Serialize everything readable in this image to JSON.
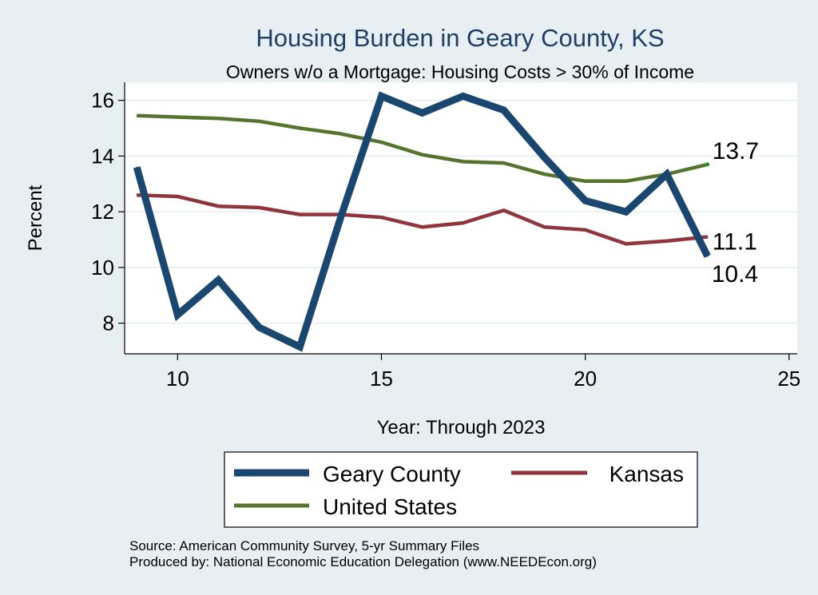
{
  "chart_data": {
    "type": "line",
    "title": "Housing Burden in Geary County, KS",
    "subtitle": "Owners w/o a Mortgage: Housing Costs > 30% of Income",
    "xlabel": "Year: Through 2023",
    "ylabel": "Percent",
    "xlim": [
      8.7,
      25.2
    ],
    "ylim": [
      6.9,
      16.65
    ],
    "x_ticks": [
      10,
      15,
      20,
      25
    ],
    "y_ticks": [
      8,
      10,
      12,
      14,
      16
    ],
    "grid": true,
    "legend_position": "bottom",
    "series": [
      {
        "name": "Geary County",
        "color": "#1a476f",
        "x": [
          9,
          10,
          11,
          12,
          13,
          14,
          15,
          16,
          17,
          18,
          19,
          20,
          21,
          22,
          23
        ],
        "values": [
          13.6,
          8.3,
          9.55,
          7.85,
          7.15,
          11.8,
          16.15,
          15.55,
          16.15,
          15.65,
          13.95,
          12.4,
          12.0,
          13.35,
          10.4
        ],
        "end_label": "10.4"
      },
      {
        "name": "Kansas",
        "color": "#90353b",
        "x": [
          9,
          10,
          11,
          12,
          13,
          14,
          15,
          16,
          17,
          18,
          19,
          20,
          21,
          22,
          23
        ],
        "values": [
          12.6,
          12.55,
          12.2,
          12.15,
          11.9,
          11.9,
          11.8,
          11.45,
          11.6,
          12.05,
          11.45,
          11.35,
          10.85,
          10.95,
          11.1
        ],
        "end_label": "11.1"
      },
      {
        "name": "United States",
        "color": "#55752f",
        "x": [
          9,
          10,
          11,
          12,
          13,
          14,
          15,
          16,
          17,
          18,
          19,
          20,
          21,
          22,
          23
        ],
        "values": [
          15.45,
          15.4,
          15.35,
          15.25,
          15.0,
          14.8,
          14.5,
          14.05,
          13.8,
          13.75,
          13.35,
          13.1,
          13.1,
          13.35,
          13.7
        ],
        "end_label": "13.7"
      }
    ]
  },
  "legend": {
    "items": [
      "Geary County",
      "Kansas",
      "United States"
    ]
  },
  "source_note": "Source: American Community Survey, 5-yr Summary Files",
  "produced_note": "Produced by: National Economic Education Delegation (www.NEEDEcon.org)"
}
